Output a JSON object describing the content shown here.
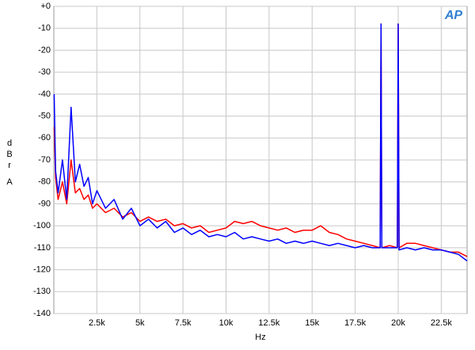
{
  "chart_data": {
    "type": "line",
    "logo": "AP",
    "xlabel": "Hz",
    "ylabel": "dBr",
    "ylabel_unit": "A",
    "xlim": [
      0,
      24000
    ],
    "ylim": [
      -140,
      0
    ],
    "xticks": [
      {
        "value": 2500,
        "label": "2.5k"
      },
      {
        "value": 5000,
        "label": "5k"
      },
      {
        "value": 7500,
        "label": "7.5k"
      },
      {
        "value": 10000,
        "label": "10k"
      },
      {
        "value": 12500,
        "label": "12.5k"
      },
      {
        "value": 15000,
        "label": "15k"
      },
      {
        "value": 17500,
        "label": "17.5k"
      },
      {
        "value": 20000,
        "label": "20k"
      },
      {
        "value": 22500,
        "label": "22.5k"
      }
    ],
    "yticks": [
      {
        "value": 0,
        "label": "+0"
      },
      -10,
      -20,
      -30,
      -40,
      -50,
      -60,
      -70,
      -80,
      -90,
      -100,
      -110,
      -120,
      -130,
      -140
    ],
    "grid": true,
    "x": [
      20,
      100,
      250,
      500,
      750,
      1000,
      1250,
      1500,
      1750,
      2000,
      2250,
      2500,
      3000,
      3500,
      4000,
      4500,
      5000,
      5500,
      6000,
      6500,
      7000,
      7500,
      8000,
      8500,
      9000,
      9500,
      10000,
      10500,
      11000,
      11500,
      12000,
      12500,
      13000,
      13500,
      14000,
      14500,
      15000,
      15500,
      16000,
      16500,
      17000,
      17500,
      18000,
      18500,
      18950,
      19000,
      19050,
      19500,
      19950,
      20000,
      20050,
      20500,
      21000,
      21500,
      22000,
      22500,
      23000,
      23500,
      24000
    ],
    "series": [
      {
        "color": "#ff0000",
        "values": [
          -55,
          -78,
          -88,
          -80,
          -90,
          -70,
          -85,
          -83,
          -88,
          -86,
          -92,
          -90,
          -94,
          -92,
          -96,
          -94,
          -98,
          -96,
          -98,
          -97,
          -100,
          -99,
          -101,
          -100,
          -103,
          -102,
          -101,
          -98,
          -99,
          -98,
          -100,
          -101,
          -102,
          -101,
          -103,
          -102,
          -102,
          -100,
          -103,
          -104,
          -106,
          -107,
          -108,
          -109,
          -110,
          -8,
          -110,
          -109,
          -110,
          -8,
          -110,
          -108,
          -108,
          -109,
          -110,
          -111,
          -112,
          -112,
          -114
        ]
      },
      {
        "color": "#0000ff",
        "values": [
          -40,
          -75,
          -85,
          -70,
          -88,
          -46,
          -80,
          -72,
          -82,
          -78,
          -90,
          -84,
          -92,
          -88,
          -97,
          -92,
          -100,
          -97,
          -101,
          -98,
          -103,
          -101,
          -104,
          -102,
          -105,
          -104,
          -105,
          -103,
          -106,
          -105,
          -106,
          -107,
          -106,
          -108,
          -107,
          -108,
          -107,
          -108,
          -109,
          -108,
          -109,
          -110,
          -109,
          -110,
          -110,
          -8,
          -110,
          -110,
          -110,
          -8,
          -111,
          -110,
          -111,
          -110,
          -111,
          -111,
          -112,
          -113,
          -116
        ]
      }
    ]
  }
}
